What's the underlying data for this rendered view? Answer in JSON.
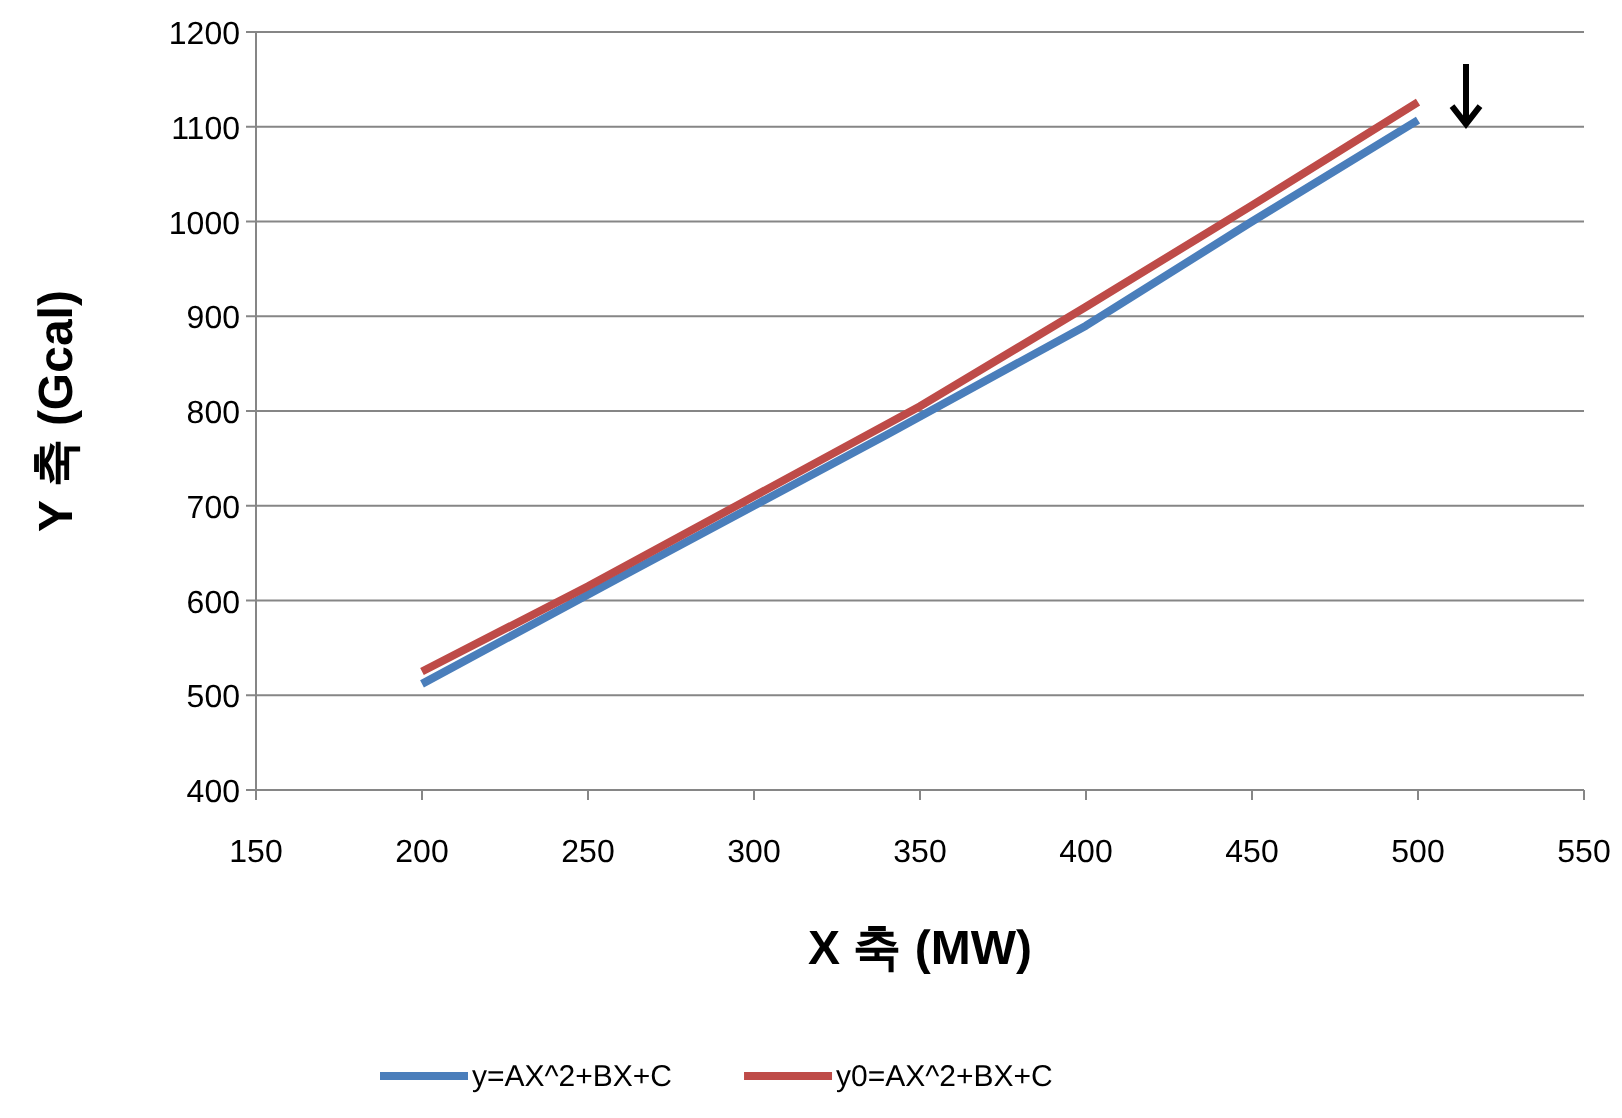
{
  "chart_data": {
    "type": "line",
    "xlabel": "X 축 (MW)",
    "ylabel": "Y 축 (Gcal)",
    "xlim": [
      150,
      550
    ],
    "xticks": [
      150,
      200,
      250,
      300,
      350,
      400,
      450,
      500,
      550
    ],
    "ylim": [
      400,
      1200
    ],
    "yticks": [
      400,
      500,
      600,
      700,
      800,
      900,
      1000,
      1100,
      1200
    ],
    "grid": "y",
    "legend": "bottom",
    "marker": "none",
    "line_style": "solid",
    "series": [
      {
        "name": "y=AX^2+BX+C",
        "color": "#4a7ebb",
        "x": [
          200,
          260,
          300,
          340,
          400,
          450,
          500
        ],
        "values": [
          512,
          625,
          700,
          775,
          890,
          1000,
          1107
        ]
      },
      {
        "name": "y0=AX^2+BX+C",
        "color": "#be4b48",
        "x": [
          200,
          250,
          300,
          350,
          400,
          450,
          500
        ],
        "values": [
          525,
          615,
          710,
          805,
          910,
          1017,
          1126
        ]
      }
    ]
  }
}
